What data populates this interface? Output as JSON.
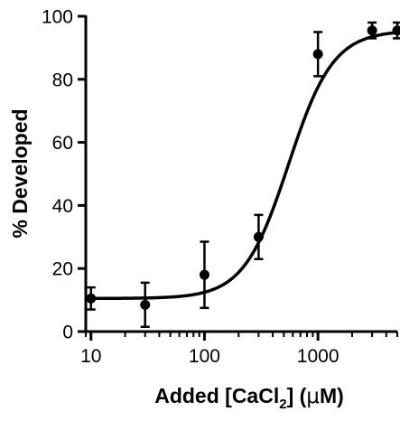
{
  "chart_data": {
    "type": "scatter",
    "x_scale": "log",
    "xlim": [
      9,
      5000
    ],
    "ylim": [
      0,
      100
    ],
    "x_ticks": [
      10,
      100,
      1000
    ],
    "x_tick_labels": [
      "10",
      "100",
      "1000"
    ],
    "y_ticks": [
      0,
      20,
      40,
      60,
      80,
      100
    ],
    "y_tick_labels": [
      "0",
      "20",
      "40",
      "60",
      "80",
      "100"
    ],
    "xlabel": {
      "prefix": "Added [CaCl",
      "subscript": "2",
      "close": "]",
      "unit_open": " (",
      "unit_greek": "μ",
      "unit_rest": "M)"
    },
    "ylabel": "% Developed",
    "grid": false,
    "series": [
      {
        "x": [
          10,
          30,
          100,
          300,
          1000,
          3000,
          5000
        ],
        "y": [
          10.5,
          8.5,
          18,
          30,
          88,
          95.5,
          95.5
        ],
        "err": [
          3.5,
          7,
          10.5,
          7,
          7,
          2.5,
          2.5
        ]
      }
    ],
    "fit": {
      "model": "sigmoid",
      "bottom": 10.5,
      "top": 95.5,
      "ec50": 550,
      "hill": 2.2
    }
  }
}
